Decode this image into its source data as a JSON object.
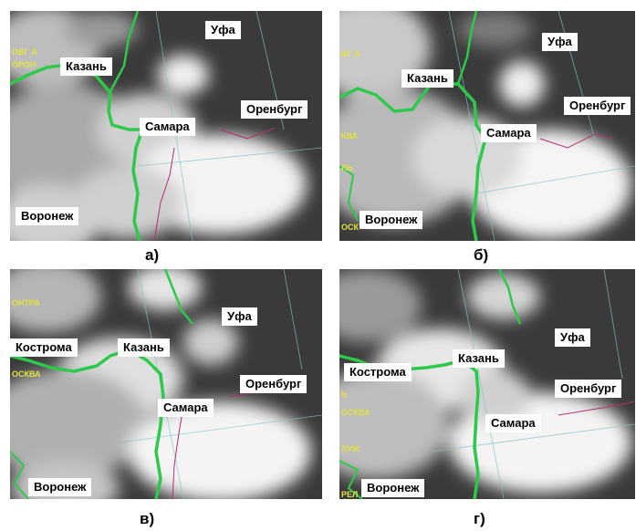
{
  "panels": [
    {
      "id": "a",
      "caption": "а)",
      "cities": [
        "Уфа",
        "Казань",
        "Оренбург",
        "Самара",
        "Воронеж"
      ]
    },
    {
      "id": "b",
      "caption": "б)",
      "cities": [
        "Уфа",
        "Казань",
        "Оренбург",
        "Самара",
        "Воронеж"
      ]
    },
    {
      "id": "v",
      "caption": "в)",
      "cities": [
        "Уфа",
        "Кострома",
        "Казань",
        "Оренбург",
        "Самара",
        "Воронеж"
      ]
    },
    {
      "id": "g",
      "caption": "г)",
      "cities": [
        "Уфа",
        "Кострома",
        "Казань",
        "Оренбург",
        "Самара",
        "Воронеж"
      ]
    }
  ],
  "colors": {
    "river": "#2ec84a",
    "border": "#b03070",
    "grid": "#7fc4c4",
    "map_text": "#e3e341",
    "ground": "#3a3a3a",
    "cloud": "#f2f2f2"
  }
}
